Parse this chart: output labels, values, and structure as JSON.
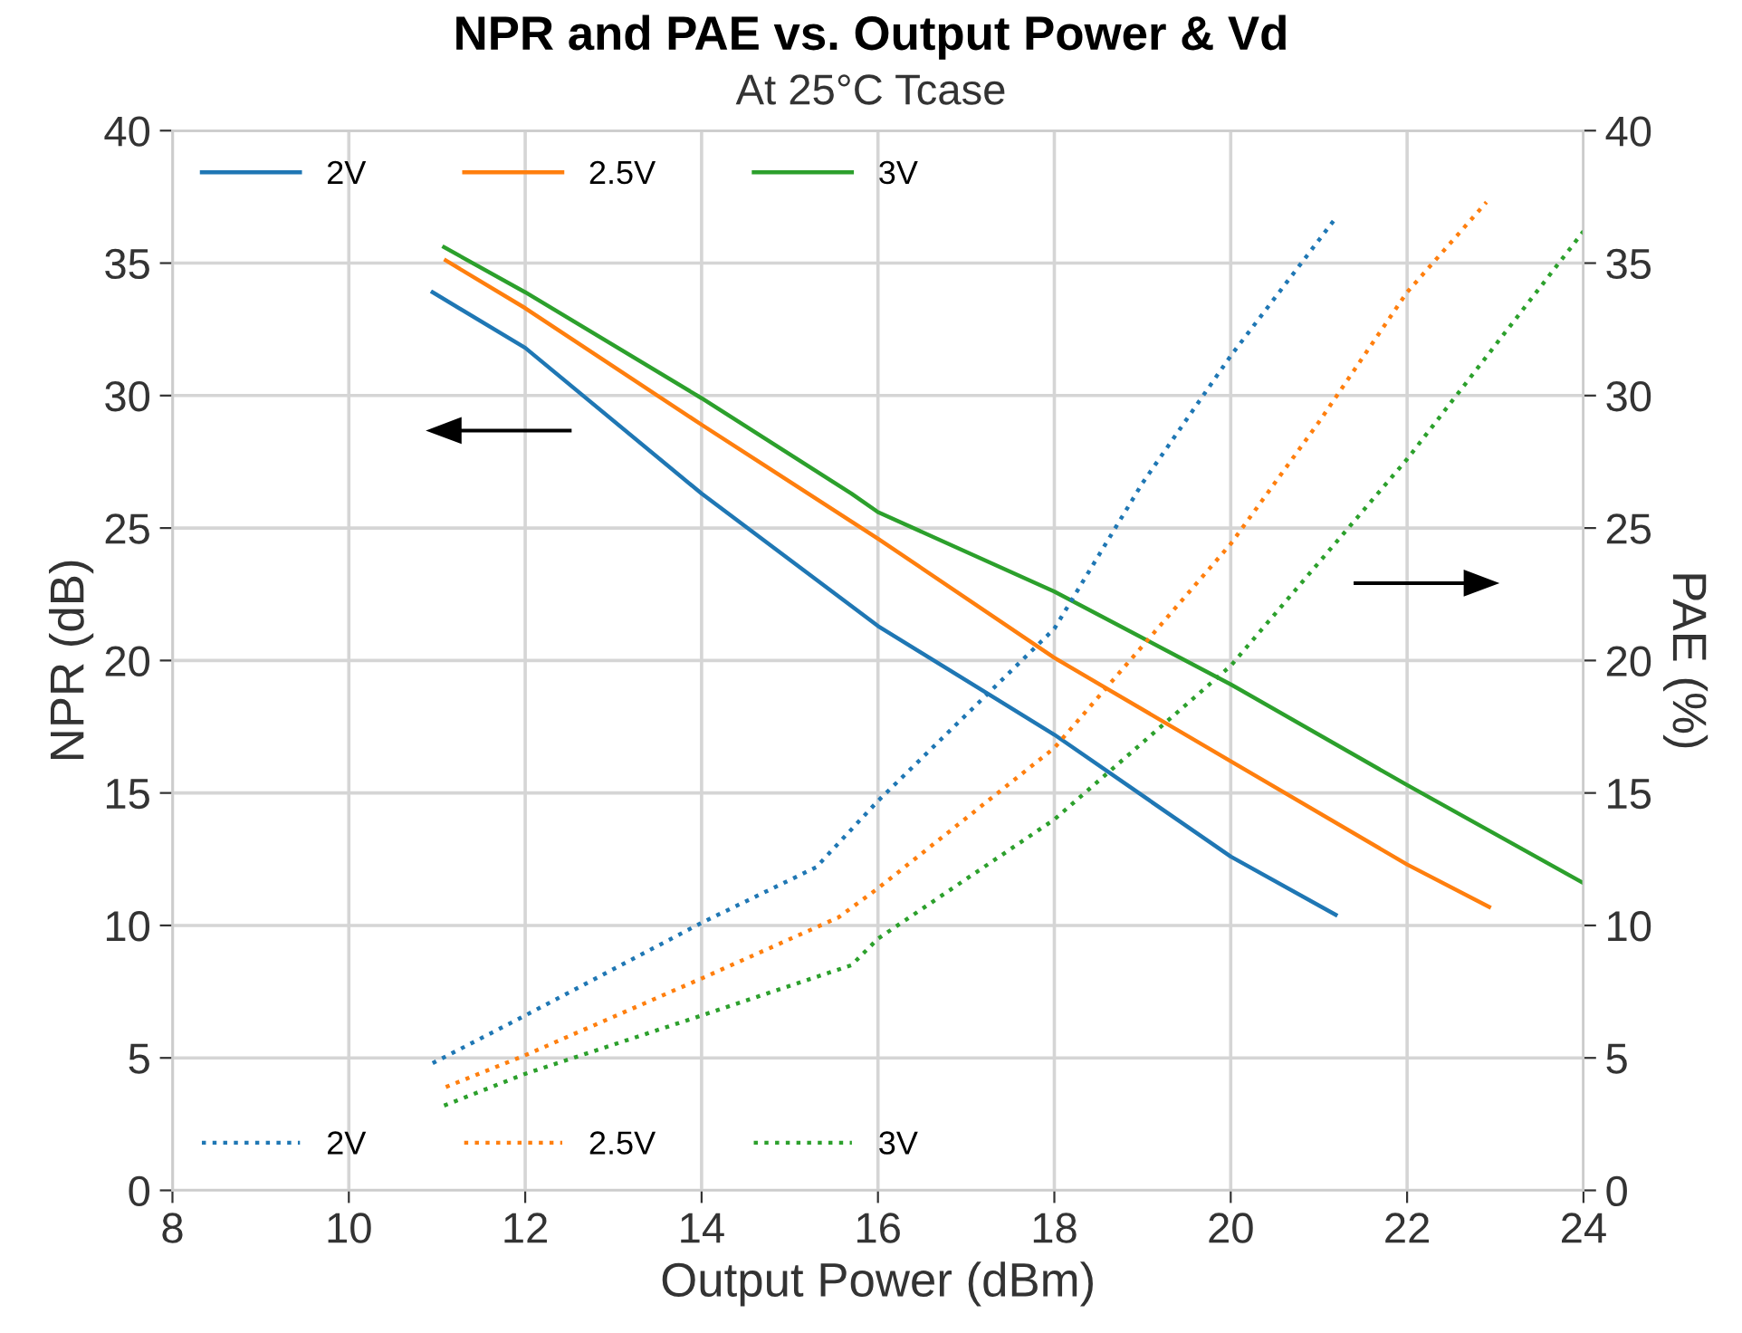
{
  "chart_data": {
    "type": "line",
    "title": "NPR and PAE vs. Output Power & Vd",
    "subtitle": "At 25°C Tcase",
    "xlabel": "Output Power (dBm)",
    "ylabel": "NPR (dB)",
    "y2label": "PAE (%)",
    "xlim": [
      8,
      24
    ],
    "xticks": [
      8,
      10,
      12,
      14,
      16,
      18,
      20,
      22,
      24
    ],
    "ylim": [
      0,
      40
    ],
    "yticks": [
      0,
      5,
      10,
      15,
      20,
      25,
      30,
      35,
      40
    ],
    "y2lim": [
      0,
      40
    ],
    "y2ticks": [
      0,
      5,
      10,
      15,
      20,
      25,
      30,
      35,
      40
    ],
    "grid": true,
    "legend": "top left",
    "series": [
      {
        "name": "2V",
        "color": "#1f77b4",
        "line_style": "solid",
        "x": [
          10.95,
          12,
          14,
          16,
          18,
          20,
          21.19
        ],
        "values": [
          33.9,
          31.8,
          26.3,
          21.3,
          17.2,
          12.6,
          10.4
        ]
      },
      {
        "name": "2.5V",
        "color": "#ff7f0e",
        "line_style": "solid",
        "x": [
          11.1,
          12,
          14,
          16,
          18,
          20,
          22,
          22.93
        ],
        "values": [
          35.1,
          33.3,
          28.9,
          24.6,
          20.1,
          16.2,
          12.3,
          10.7
        ]
      },
      {
        "name": "3V",
        "color": "#2ca02c",
        "line_style": "solid",
        "x": [
          11.08,
          12,
          14,
          15.7,
          16,
          18,
          20,
          22,
          24
        ],
        "values": [
          35.6,
          33.9,
          29.9,
          26.3,
          25.6,
          22.6,
          19.1,
          15.3,
          11.6
        ]
      },
      {
        "name": "2V",
        "color": "#1f77b4",
        "line_style": "dotted",
        "axis": "y2",
        "x": [
          10.95,
          12,
          14,
          15.3,
          16,
          18,
          19,
          20,
          21.19
        ],
        "values": [
          4.8,
          6.6,
          10.1,
          12.2,
          14.7,
          21.2,
          26.7,
          31.5,
          36.7
        ]
      },
      {
        "name": "2.5V",
        "color": "#ff7f0e",
        "line_style": "dotted",
        "axis": "y2",
        "x": [
          11.1,
          12,
          14,
          15.55,
          16,
          18,
          20,
          21,
          22,
          22.9
        ],
        "values": [
          3.9,
          5.1,
          8.0,
          10.3,
          11.4,
          16.7,
          24.4,
          29.0,
          33.9,
          37.3
        ]
      },
      {
        "name": "3V",
        "color": "#2ca02c",
        "line_style": "dotted",
        "axis": "y2",
        "x": [
          11.08,
          12,
          14,
          15.7,
          16,
          18,
          20,
          22,
          23,
          24
        ],
        "values": [
          3.2,
          4.4,
          6.6,
          8.5,
          9.5,
          14.0,
          19.8,
          27.6,
          31.9,
          36.2
        ]
      }
    ]
  }
}
